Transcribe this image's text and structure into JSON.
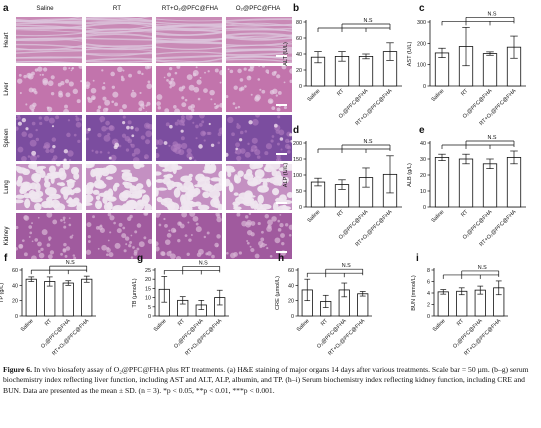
{
  "figure": {
    "panel_a": {
      "letter": "a",
      "columns": [
        "Saline",
        "RT",
        "RT+O₂@PFC@FHA",
        "O₂@PFC@FHA"
      ],
      "rows": [
        "Heart",
        "Liver",
        "Spleen",
        "Lung",
        "Kidney"
      ],
      "tissue_colors": {
        "Heart": [
          "#c98ab6",
          "#dcc4dc"
        ],
        "Liver": [
          "#c274ac",
          "#e6cfe4"
        ],
        "Spleen": [
          "#7b4d9f",
          "#b27fc2"
        ],
        "Lung": [
          "#c490c2",
          "#efe6ef"
        ],
        "Kidney": [
          "#a05a9e",
          "#d9b7d6"
        ]
      }
    },
    "tick_labels": [
      "Saline",
      "RT",
      "O₂@PFC@FHA",
      "RT+O₂@PFC@FHA"
    ],
    "significance_label": "N.S",
    "bar_fill": "#ffffff",
    "bar_stroke": "#111111"
  },
  "chart_data": [
    {
      "panel": "b",
      "type": "bar",
      "ylabel": "ALT (U/L)",
      "ylim": [
        0,
        80
      ],
      "yticks": [
        0,
        20,
        40,
        60,
        80
      ],
      "values": [
        36,
        37,
        37,
        43
      ],
      "errors": [
        7,
        6,
        3,
        11
      ]
    },
    {
      "panel": "c",
      "type": "bar",
      "ylabel": "AST (U/L)",
      "ylim": [
        0,
        300
      ],
      "yticks": [
        0,
        100,
        200,
        300
      ],
      "values": [
        155,
        185,
        152,
        182
      ],
      "errors": [
        22,
        90,
        8,
        52
      ]
    },
    {
      "panel": "d",
      "type": "bar",
      "ylabel": "ALP (U/L)",
      "ylim": [
        0,
        200
      ],
      "yticks": [
        0,
        50,
        100,
        150,
        200
      ],
      "values": [
        78,
        70,
        92,
        102
      ],
      "errors": [
        12,
        15,
        30,
        58
      ]
    },
    {
      "panel": "e",
      "type": "bar",
      "ylabel": "ALB (g/L)",
      "ylim": [
        0,
        40
      ],
      "yticks": [
        0,
        10,
        20,
        30,
        40
      ],
      "values": [
        31,
        30,
        27,
        31
      ],
      "errors": [
        2,
        3,
        3,
        4
      ]
    },
    {
      "panel": "f",
      "type": "bar",
      "ylabel": "TP (g/L)",
      "ylim": [
        0,
        60
      ],
      "yticks": [
        0,
        20,
        40,
        60
      ],
      "values": [
        48,
        45,
        43,
        48
      ],
      "errors": [
        3,
        6,
        3,
        4
      ]
    },
    {
      "panel": "g",
      "type": "bar",
      "ylabel": "TB (µmol/L)",
      "ylim": [
        0,
        25
      ],
      "yticks": [
        0,
        5,
        10,
        15,
        20,
        25
      ],
      "values": [
        14.5,
        8.5,
        6,
        10
      ],
      "errors": [
        7,
        2,
        2.5,
        4
      ]
    },
    {
      "panel": "h",
      "type": "bar",
      "ylabel": "CRE (µmol/L)",
      "ylim": [
        0,
        60
      ],
      "yticks": [
        0,
        20,
        40,
        60
      ],
      "values": [
        34,
        19,
        34,
        29
      ],
      "errors": [
        14,
        8,
        9,
        3
      ]
    },
    {
      "panel": "i",
      "type": "bar",
      "ylabel": "BUN (mmol/L)",
      "ylim": [
        0,
        8
      ],
      "yticks": [
        0,
        2,
        4,
        6,
        8
      ],
      "values": [
        4.2,
        4.3,
        4.5,
        4.9
      ],
      "errors": [
        0.4,
        0.6,
        0.7,
        1.2
      ]
    }
  ],
  "caption": {
    "label": "Figure 6.",
    "text": "In vivo biosafety assay of O₂@PFC@FHA plus RT treatments. (a) H&E staining of major organs 14 days after various treatments. Scale bar = 50 µm. (b–g) serum biochemistry index reflecting liver function, including AST and ALT, ALP, albumin, and TP. (h–i) Serum biochemistry index reflecting kidney function, including CRE and BUN. Data are presented as the mean ± SD. (n = 3). *p < 0.05, **p < 0.01, ***p < 0.001."
  }
}
